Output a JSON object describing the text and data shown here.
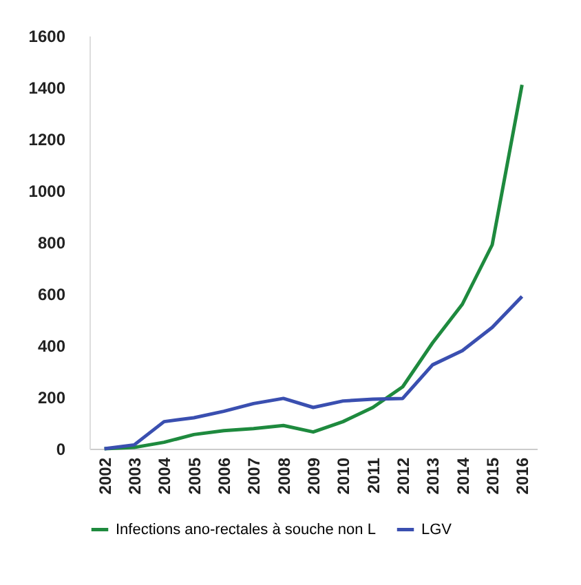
{
  "chart_data": {
    "type": "line",
    "categories": [
      "2002",
      "2003",
      "2004",
      "2005",
      "2006",
      "2007",
      "2008",
      "2009",
      "2010",
      "2011",
      "2012",
      "2013",
      "2014",
      "2015",
      "2016"
    ],
    "series": [
      {
        "name": "Infections ano-rectales à souche non L",
        "color": "#1e8a3e",
        "values": [
          0,
          5,
          25,
          55,
          70,
          78,
          90,
          65,
          105,
          160,
          240,
          410,
          560,
          790,
          1410
        ]
      },
      {
        "name": "LGV",
        "color": "#3a4fb0",
        "values": [
          0,
          15,
          105,
          120,
          145,
          175,
          195,
          160,
          185,
          192,
          195,
          325,
          380,
          470,
          590
        ]
      }
    ],
    "ylim": [
      0,
      1600
    ],
    "yticks": [
      0,
      200,
      400,
      600,
      800,
      1000,
      1200,
      1400,
      1600
    ],
    "grid": false,
    "legend": "bottom",
    "marker": "none",
    "line_style": "solid"
  }
}
